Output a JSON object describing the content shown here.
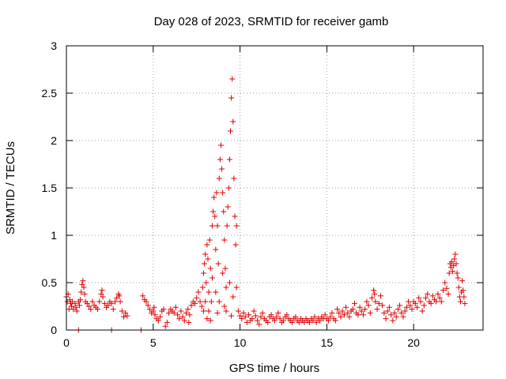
{
  "chart_data": {
    "type": "scatter",
    "title": "Day 028 of 2023, SRMTID for receiver gamb",
    "xlabel": "GPS time / hours",
    "ylabel": "SRMTID / TECUs",
    "xlim": [
      0,
      24
    ],
    "ylim": [
      0,
      3
    ],
    "x_ticks": [
      0,
      5,
      10,
      15,
      20
    ],
    "y_ticks": [
      0,
      0.5,
      1,
      1.5,
      2,
      2.5,
      3
    ],
    "x_tick_labels": [
      "0",
      "5",
      "10",
      "15",
      "20"
    ],
    "y_tick_labels": [
      "0",
      "0.5",
      "1",
      "1.5",
      "2",
      "2.5",
      "3"
    ],
    "grid": true,
    "marker": "+",
    "series": [
      {
        "name": "SRMTID",
        "color": "#e00000",
        "points": [
          [
            0.0,
            0.35
          ],
          [
            0.05,
            0.3
          ],
          [
            0.1,
            0.38
          ],
          [
            0.15,
            0.22
          ],
          [
            0.2,
            0.32
          ],
          [
            0.25,
            0.28
          ],
          [
            0.3,
            0.25
          ],
          [
            0.35,
            0.3
          ],
          [
            0.4,
            0.22
          ],
          [
            0.5,
            0.28
          ],
          [
            0.55,
            0.24
          ],
          [
            0.6,
            0.2
          ],
          [
            0.7,
            0.3
          ],
          [
            0.75,
            0.26
          ],
          [
            0.8,
            0.32
          ],
          [
            0.85,
            0.4
          ],
          [
            0.9,
            0.48
          ],
          [
            0.95,
            0.52
          ],
          [
            1.0,
            0.45
          ],
          [
            1.05,
            0.38
          ],
          [
            1.1,
            0.3
          ],
          [
            1.2,
            0.28
          ],
          [
            1.3,
            0.25
          ],
          [
            1.4,
            0.22
          ],
          [
            1.5,
            0.3
          ],
          [
            1.6,
            0.26
          ],
          [
            1.7,
            0.24
          ],
          [
            1.8,
            0.22
          ],
          [
            1.9,
            0.3
          ],
          [
            2.0,
            0.38
          ],
          [
            2.05,
            0.42
          ],
          [
            2.1,
            0.35
          ],
          [
            2.2,
            0.28
          ],
          [
            2.3,
            0.24
          ],
          [
            2.4,
            0.26
          ],
          [
            2.5,
            0.3
          ],
          [
            2.6,
            0.28
          ],
          [
            2.7,
            0.22
          ],
          [
            2.8,
            0.3
          ],
          [
            2.9,
            0.34
          ],
          [
            3.0,
            0.38
          ],
          [
            3.05,
            0.36
          ],
          [
            3.1,
            0.3
          ],
          [
            3.2,
            0.2
          ],
          [
            3.3,
            0.14
          ],
          [
            3.4,
            0.18
          ],
          [
            3.5,
            0.15
          ],
          [
            0.7,
            0.0
          ],
          [
            2.6,
            0.0
          ],
          [
            4.3,
            0.0
          ],
          [
            4.4,
            0.36
          ],
          [
            4.5,
            0.32
          ],
          [
            4.6,
            0.3
          ],
          [
            4.7,
            0.26
          ],
          [
            4.8,
            0.22
          ],
          [
            4.9,
            0.18
          ],
          [
            5.0,
            0.2
          ],
          [
            5.05,
            0.24
          ],
          [
            5.1,
            0.16
          ],
          [
            5.2,
            0.12
          ],
          [
            5.3,
            0.1
          ],
          [
            5.4,
            0.14
          ],
          [
            5.5,
            0.2
          ],
          [
            5.6,
            0.22
          ],
          [
            5.7,
            0.04
          ],
          [
            5.8,
            0.08
          ],
          [
            5.9,
            0.18
          ],
          [
            6.0,
            0.22
          ],
          [
            6.1,
            0.2
          ],
          [
            6.2,
            0.18
          ],
          [
            6.3,
            0.24
          ],
          [
            6.4,
            0.16
          ],
          [
            6.5,
            0.12
          ],
          [
            6.6,
            0.2
          ],
          [
            6.7,
            0.14
          ],
          [
            6.8,
            0.1
          ],
          [
            6.9,
            0.18
          ],
          [
            7.0,
            0.22
          ],
          [
            7.05,
            0.08
          ],
          [
            7.1,
            0.16
          ],
          [
            7.2,
            0.26
          ],
          [
            7.3,
            0.3
          ],
          [
            7.4,
            0.28
          ],
          [
            7.5,
            0.34
          ],
          [
            7.6,
            0.4
          ],
          [
            7.7,
            0.3
          ],
          [
            7.8,
            0.25
          ],
          [
            7.85,
            0.45
          ],
          [
            7.9,
            0.6
          ],
          [
            7.95,
            0.7
          ],
          [
            8.0,
            0.8
          ],
          [
            8.05,
            0.5
          ],
          [
            8.1,
            0.9
          ],
          [
            8.15,
            0.75
          ],
          [
            8.2,
            0.4
          ],
          [
            8.25,
            0.95
          ],
          [
            8.3,
            0.65
          ],
          [
            8.35,
            0.3
          ],
          [
            8.4,
            1.1
          ],
          [
            8.45,
            1.25
          ],
          [
            8.5,
            1.4
          ],
          [
            8.55,
            1.2
          ],
          [
            8.6,
            0.85
          ],
          [
            8.65,
            1.45
          ],
          [
            8.7,
            1.1
          ],
          [
            8.75,
            0.7
          ],
          [
            8.8,
            1.6
          ],
          [
            8.85,
            1.8
          ],
          [
            8.9,
            1.95
          ],
          [
            8.95,
            1.7
          ],
          [
            9.0,
            1.45
          ],
          [
            9.05,
            1.25
          ],
          [
            9.1,
            0.95
          ],
          [
            9.15,
            0.65
          ],
          [
            9.2,
            0.45
          ],
          [
            9.25,
            1.1
          ],
          [
            9.3,
            1.3
          ],
          [
            9.35,
            1.5
          ],
          [
            9.4,
            1.8
          ],
          [
            9.45,
            2.1
          ],
          [
            9.5,
            2.45
          ],
          [
            9.55,
            2.65
          ],
          [
            9.6,
            2.2
          ],
          [
            9.65,
            1.6
          ],
          [
            9.7,
            1.2
          ],
          [
            9.75,
            0.9
          ],
          [
            9.8,
            1.1
          ],
          [
            8.0,
            0.3
          ],
          [
            8.2,
            0.2
          ],
          [
            8.4,
            0.55
          ],
          [
            8.6,
            0.4
          ],
          [
            8.8,
            0.3
          ],
          [
            9.0,
            0.6
          ],
          [
            9.2,
            0.2
          ],
          [
            9.4,
            0.5
          ],
          [
            9.6,
            0.35
          ],
          [
            9.8,
            0.45
          ],
          [
            7.9,
            0.2
          ],
          [
            8.1,
            0.12
          ],
          [
            8.3,
            0.1
          ],
          [
            8.7,
            0.18
          ],
          [
            9.1,
            0.25
          ],
          [
            9.5,
            0.15
          ],
          [
            9.9,
            0.2
          ],
          [
            10.0,
            0.15
          ],
          [
            10.1,
            0.12
          ],
          [
            10.2,
            0.18
          ],
          [
            10.3,
            0.14
          ],
          [
            10.4,
            0.08
          ],
          [
            10.5,
            0.16
          ],
          [
            10.6,
            0.1
          ],
          [
            10.7,
            0.12
          ],
          [
            10.8,
            0.2
          ],
          [
            10.9,
            0.15
          ],
          [
            11.0,
            0.1
          ],
          [
            11.1,
            0.06
          ],
          [
            11.2,
            0.14
          ],
          [
            11.3,
            0.18
          ],
          [
            11.4,
            0.12
          ],
          [
            11.5,
            0.1
          ],
          [
            11.6,
            0.08
          ],
          [
            11.7,
            0.14
          ],
          [
            11.8,
            0.16
          ],
          [
            11.9,
            0.12
          ],
          [
            12.0,
            0.1
          ],
          [
            12.1,
            0.14
          ],
          [
            12.2,
            0.18
          ],
          [
            12.3,
            0.12
          ],
          [
            12.4,
            0.08
          ],
          [
            12.5,
            0.1
          ],
          [
            12.6,
            0.14
          ],
          [
            12.7,
            0.16
          ],
          [
            12.8,
            0.12
          ],
          [
            12.9,
            0.1
          ],
          [
            13.0,
            0.08
          ],
          [
            13.1,
            0.12
          ],
          [
            13.2,
            0.14
          ],
          [
            13.3,
            0.1
          ],
          [
            13.4,
            0.08
          ],
          [
            13.5,
            0.12
          ],
          [
            13.6,
            0.1
          ],
          [
            13.7,
            0.08
          ],
          [
            13.8,
            0.12
          ],
          [
            13.9,
            0.1
          ],
          [
            14.0,
            0.08
          ],
          [
            14.1,
            0.12
          ],
          [
            14.2,
            0.1
          ],
          [
            14.3,
            0.14
          ],
          [
            14.4,
            0.08
          ],
          [
            14.5,
            0.12
          ],
          [
            14.6,
            0.1
          ],
          [
            14.7,
            0.14
          ],
          [
            14.8,
            0.12
          ],
          [
            14.9,
            0.16
          ],
          [
            15.0,
            0.12
          ],
          [
            15.1,
            0.1
          ],
          [
            15.2,
            0.14
          ],
          [
            15.3,
            0.18
          ],
          [
            15.4,
            0.12
          ],
          [
            15.5,
            0.1
          ],
          [
            15.6,
            0.22
          ],
          [
            15.7,
            0.18
          ],
          [
            15.8,
            0.14
          ],
          [
            15.9,
            0.2
          ],
          [
            16.0,
            0.16
          ],
          [
            16.1,
            0.24
          ],
          [
            16.2,
            0.18
          ],
          [
            16.3,
            0.14
          ],
          [
            16.4,
            0.2
          ],
          [
            16.5,
            0.22
          ],
          [
            16.6,
            0.28
          ],
          [
            16.7,
            0.18
          ],
          [
            16.8,
            0.16
          ],
          [
            16.9,
            0.24
          ],
          [
            17.0,
            0.2
          ],
          [
            17.1,
            0.16
          ],
          [
            17.2,
            0.22
          ],
          [
            17.3,
            0.3
          ],
          [
            17.4,
            0.26
          ],
          [
            17.5,
            0.18
          ],
          [
            17.6,
            0.34
          ],
          [
            17.7,
            0.42
          ],
          [
            17.75,
            0.38
          ],
          [
            17.8,
            0.3
          ],
          [
            17.9,
            0.22
          ],
          [
            18.0,
            0.28
          ],
          [
            18.1,
            0.36
          ],
          [
            18.2,
            0.26
          ],
          [
            18.3,
            0.18
          ],
          [
            18.4,
            0.12
          ],
          [
            18.5,
            0.2
          ],
          [
            18.6,
            0.24
          ],
          [
            18.7,
            0.16
          ],
          [
            18.8,
            0.1
          ],
          [
            18.9,
            0.18
          ],
          [
            19.0,
            0.14
          ],
          [
            19.1,
            0.22
          ],
          [
            19.2,
            0.26
          ],
          [
            19.3,
            0.18
          ],
          [
            19.4,
            0.14
          ],
          [
            19.5,
            0.2
          ],
          [
            19.6,
            0.24
          ],
          [
            19.7,
            0.3
          ],
          [
            19.8,
            0.26
          ],
          [
            19.9,
            0.22
          ],
          [
            20.0,
            0.3
          ],
          [
            20.1,
            0.28
          ],
          [
            20.2,
            0.24
          ],
          [
            20.3,
            0.34
          ],
          [
            20.4,
            0.3
          ],
          [
            20.5,
            0.2
          ],
          [
            20.6,
            0.26
          ],
          [
            20.7,
            0.34
          ],
          [
            20.8,
            0.38
          ],
          [
            20.9,
            0.3
          ],
          [
            21.0,
            0.28
          ],
          [
            21.1,
            0.36
          ],
          [
            21.2,
            0.32
          ],
          [
            21.3,
            0.3
          ],
          [
            21.4,
            0.38
          ],
          [
            21.5,
            0.34
          ],
          [
            21.6,
            0.3
          ],
          [
            21.7,
            0.42
          ],
          [
            21.8,
            0.5
          ],
          [
            21.9,
            0.44
          ],
          [
            22.0,
            0.38
          ],
          [
            22.05,
            0.6
          ],
          [
            22.1,
            0.7
          ],
          [
            22.15,
            0.66
          ],
          [
            22.2,
            0.72
          ],
          [
            22.25,
            0.62
          ],
          [
            22.3,
            0.68
          ],
          [
            22.35,
            0.75
          ],
          [
            22.4,
            0.8
          ],
          [
            22.45,
            0.7
          ],
          [
            22.5,
            0.6
          ],
          [
            22.55,
            0.55
          ],
          [
            22.6,
            0.45
          ],
          [
            22.65,
            0.35
          ],
          [
            22.7,
            0.3
          ],
          [
            22.75,
            0.4
          ],
          [
            22.8,
            0.52
          ],
          [
            22.85,
            0.42
          ],
          [
            22.9,
            0.35
          ],
          [
            22.95,
            0.28
          ]
        ]
      }
    ]
  }
}
